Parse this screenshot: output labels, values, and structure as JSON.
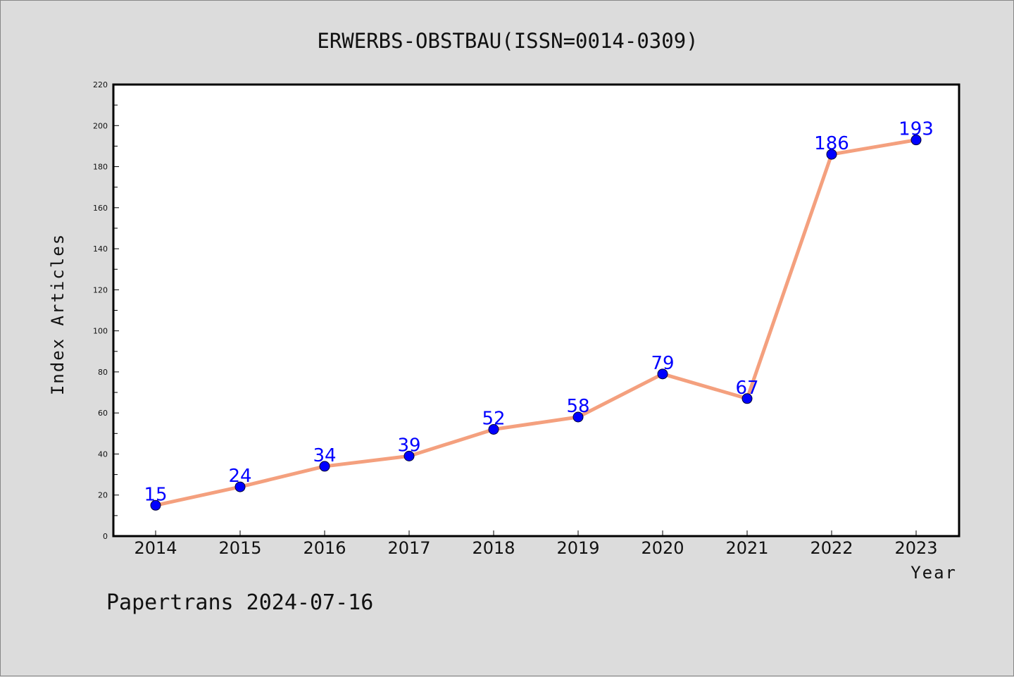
{
  "chart_data": {
    "type": "line",
    "title": "ERWERBS-OBSTBAU(ISSN=0014-0309)",
    "xlabel": "Year",
    "ylabel": "Index Articles",
    "categories": [
      "2014",
      "2015",
      "2016",
      "2017",
      "2018",
      "2019",
      "2020",
      "2021",
      "2022",
      "2023"
    ],
    "values": [
      15,
      24,
      34,
      39,
      52,
      58,
      79,
      67,
      186,
      193
    ],
    "ylim": [
      0,
      220
    ],
    "yticks": [
      0,
      20,
      40,
      60,
      80,
      100,
      120,
      140,
      160,
      180,
      200,
      220
    ],
    "grid": false,
    "line_color": "#f4a07e",
    "marker_color": "#0000ff",
    "label_color": "#0000ff",
    "footer": "Papertrans 2024-07-16"
  }
}
